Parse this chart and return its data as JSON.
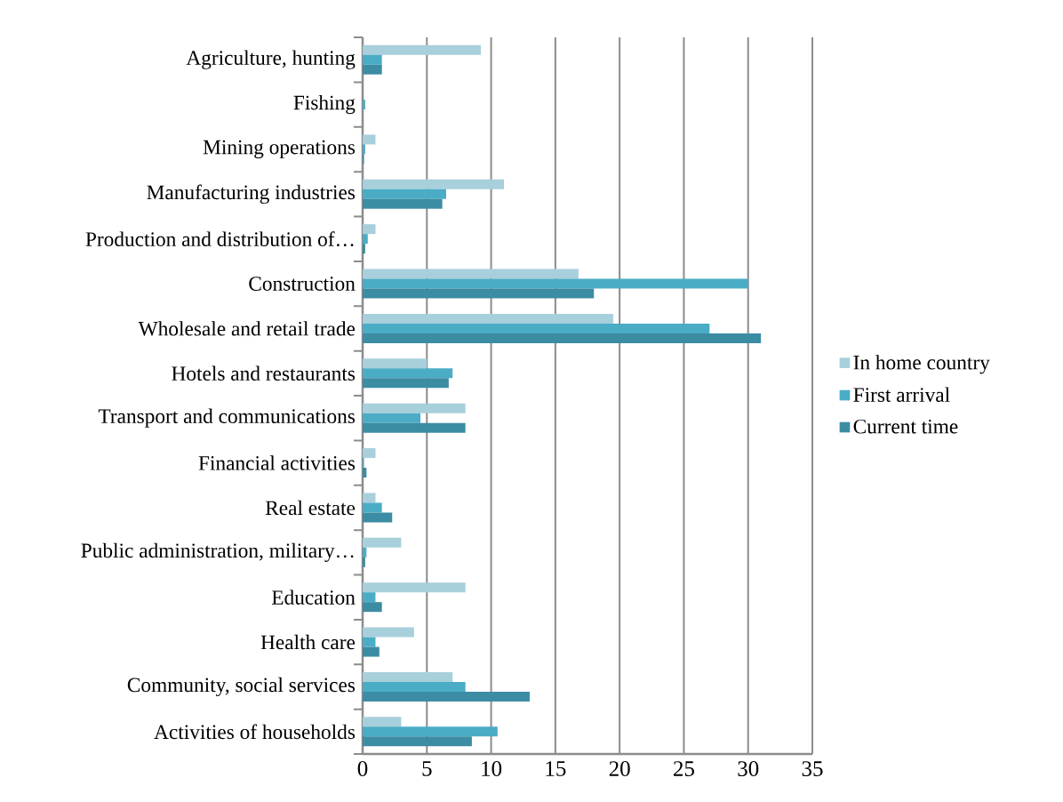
{
  "chart_data": {
    "type": "bar",
    "orientation": "horizontal",
    "categories": [
      "Agriculture, hunting",
      "Fishing",
      "Mining operations",
      "Manufacturing industries",
      "Production and distribution of…",
      "Construction",
      "Wholesale and retail trade",
      "Hotels and restaurants",
      "Transport and communications",
      "Financial activities",
      "Real estate",
      "Public administration, military…",
      "Education",
      "Health care",
      "Community, social services",
      "Activities of households"
    ],
    "series": [
      {
        "name": "In home country",
        "color": "#a8cfdc",
        "values": [
          9.2,
          0,
          1.0,
          11.0,
          1.0,
          16.8,
          19.5,
          5.0,
          8.0,
          1.0,
          1.0,
          3.0,
          8.0,
          4.0,
          7.0,
          3.0
        ]
      },
      {
        "name": "First arrival",
        "color": "#4bacc6",
        "values": [
          1.5,
          0.2,
          0.2,
          6.5,
          0.4,
          30.0,
          27.0,
          7.0,
          4.5,
          0.1,
          1.5,
          0.3,
          1.0,
          1.0,
          8.0,
          10.5
        ]
      },
      {
        "name": "Current time",
        "color": "#3c8ca3",
        "values": [
          1.5,
          0,
          0.1,
          6.2,
          0.2,
          18.0,
          31.0,
          6.7,
          8.0,
          0.3,
          2.3,
          0.2,
          1.5,
          1.3,
          13.0,
          8.5
        ]
      }
    ],
    "xlim": [
      0,
      35
    ],
    "xticks": [
      0,
      5,
      10,
      15,
      20,
      25,
      30,
      35
    ],
    "grid": "x",
    "legend": "right"
  }
}
